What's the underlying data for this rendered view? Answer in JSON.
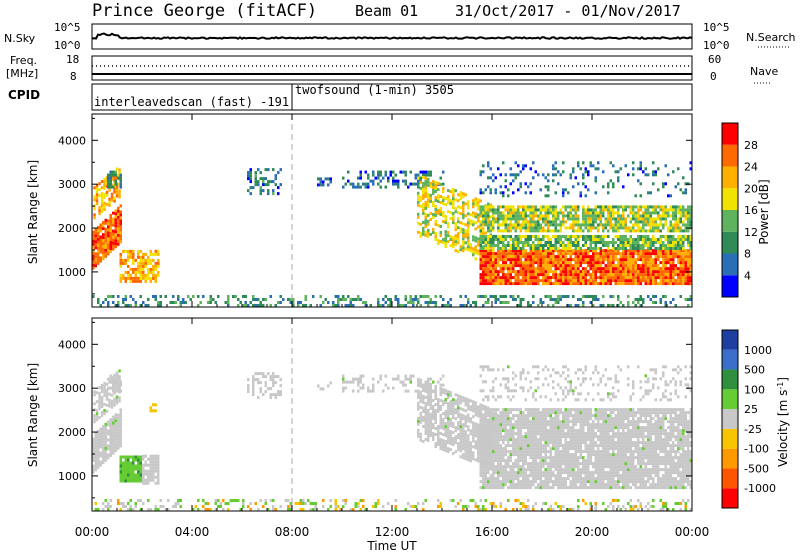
{
  "header": {
    "station": "Prince George (fitACF)",
    "beam": "Beam 01",
    "date_range": "31/Oct/2017 - 01/Nov/2017"
  },
  "noise_panel": {
    "left_label": "N.Sky",
    "left_ticks": [
      "10^5",
      "10^0"
    ],
    "right_label": "N.Search",
    "right_ticks": [
      "10^5",
      "10^0"
    ]
  },
  "freq_panel": {
    "left_label_line1": "Freq.",
    "left_label_line2": "[MHz]",
    "left_ticks": [
      "18",
      "8"
    ],
    "right_label": "Nave",
    "right_ticks": [
      "60",
      "0"
    ]
  },
  "cpid_panel": {
    "label": "CPID",
    "segments": [
      {
        "text": "interleavedscan (fast) -191",
        "start_hour": 0,
        "end_hour": 8
      },
      {
        "text": "twofsound (1-min) 3505",
        "start_hour": 8,
        "end_hour": 24
      }
    ]
  },
  "colors": {
    "power": [
      "#0000ff",
      "#2a6fb5",
      "#2e8b57",
      "#5fb35f",
      "#f2e200",
      "#ffb000",
      "#ff6a00",
      "#ff0000"
    ],
    "velocity_pos": [
      "#1f3fa0",
      "#3a6ec8",
      "#2f8f3f",
      "#66cc33"
    ],
    "velocity_ground": "#c8c8c8",
    "velocity_neg": [
      "#f7c500",
      "#ff9900",
      "#ff5500",
      "#ff0000"
    ]
  },
  "chart_data": [
    {
      "type": "heatmap",
      "title": "",
      "xlabel": "",
      "ylabel": "Slant Range [km]",
      "xlim": [
        0,
        24
      ],
      "ylim": [
        200,
        4600
      ],
      "x_ticks": [
        "00:00",
        "04:00",
        "08:00",
        "12:00",
        "16:00",
        "20:00",
        "00:00"
      ],
      "y_ticks": [
        1000,
        2000,
        3000,
        4000
      ],
      "colorbar": {
        "label": "Power [dB]",
        "ticks": [
          4,
          8,
          12,
          16,
          20,
          24,
          28
        ],
        "range": [
          0,
          32
        ]
      },
      "regions": [
        {
          "h0": 0.0,
          "h1": 1.1,
          "r0": 1050,
          "r1": 1900,
          "value": 26,
          "density": 0.95,
          "slope": 600
        },
        {
          "h0": 0.05,
          "h1": 1.1,
          "r0": 2200,
          "r1": 2900,
          "value": 22,
          "density": 0.7,
          "slope": 500
        },
        {
          "h0": 0.6,
          "h1": 1.1,
          "r0": 2900,
          "r1": 3300,
          "value": 8,
          "density": 0.6,
          "slope": 0
        },
        {
          "h0": 1.1,
          "h1": 2.7,
          "r0": 750,
          "r1": 1500,
          "value": 22,
          "density": 0.7,
          "slope": 0
        },
        {
          "h0": 6.2,
          "h1": 7.5,
          "r0": 2750,
          "r1": 3300,
          "value": 8,
          "density": 0.45,
          "slope": 0
        },
        {
          "h0": 9.0,
          "h1": 9.5,
          "r0": 2950,
          "r1": 3150,
          "value": 6,
          "density": 0.5,
          "slope": 0
        },
        {
          "h0": 10.0,
          "h1": 14.0,
          "r0": 2900,
          "r1": 3300,
          "value": 7,
          "density": 0.35,
          "slope": 0
        },
        {
          "h0": 13.0,
          "h1": 16.0,
          "r0": 1800,
          "r1": 3200,
          "value": 18,
          "density": 0.55,
          "slope": -700
        },
        {
          "h0": 15.5,
          "h1": 24.0,
          "r0": 700,
          "r1": 1500,
          "value": 26,
          "density": 0.95,
          "slope": 0
        },
        {
          "h0": 15.5,
          "h1": 24.0,
          "r0": 1500,
          "r1": 1800,
          "value": 14,
          "density": 0.85,
          "slope": 0
        },
        {
          "h0": 15.5,
          "h1": 24.0,
          "r0": 1900,
          "r1": 2450,
          "value": 16,
          "density": 0.8,
          "slope": 0
        },
        {
          "h0": 15.5,
          "h1": 24.0,
          "r0": 2700,
          "r1": 3500,
          "value": 7,
          "density": 0.2,
          "slope": 0
        },
        {
          "h0": 0.0,
          "h1": 24.0,
          "r0": 200,
          "r1": 420,
          "value": 10,
          "density": 0.35,
          "slope": 0
        }
      ]
    },
    {
      "type": "heatmap",
      "title": "",
      "xlabel": "Time UT",
      "ylabel": "Slant Range [km]",
      "xlim": [
        0,
        24
      ],
      "ylim": [
        200,
        4600
      ],
      "x_ticks": [
        "00:00",
        "04:00",
        "08:00",
        "12:00",
        "16:00",
        "20:00",
        "00:00"
      ],
      "y_ticks": [
        1000,
        2000,
        3000,
        4000
      ],
      "colorbar": {
        "label": "Velocity [m s^-1]",
        "ticks": [
          "1000",
          "500",
          "100",
          "25",
          "-25",
          "-100",
          "-500",
          "-1000"
        ]
      },
      "regions": [
        {
          "h0": 0.0,
          "h1": 1.1,
          "r0": 1050,
          "r1": 1900,
          "class": "ground",
          "density": 0.95,
          "slope": 600
        },
        {
          "h0": 0.05,
          "h1": 1.1,
          "r0": 2200,
          "r1": 2900,
          "class": "ground",
          "density": 0.7,
          "slope": 500
        },
        {
          "h0": 0.6,
          "h1": 1.1,
          "r0": 2900,
          "r1": 3300,
          "class": "ground",
          "density": 0.5,
          "slope": 0
        },
        {
          "h0": 1.1,
          "h1": 2.0,
          "r0": 850,
          "r1": 1450,
          "class": "pos",
          "density": 0.9,
          "slope": 0
        },
        {
          "h0": 2.0,
          "h1": 2.7,
          "r0": 800,
          "r1": 1450,
          "class": "ground",
          "density": 0.85,
          "slope": 0
        },
        {
          "h0": 2.3,
          "h1": 2.6,
          "r0": 2450,
          "r1": 2650,
          "class": "neg",
          "density": 0.7,
          "slope": 0
        },
        {
          "h0": 6.2,
          "h1": 7.5,
          "r0": 2750,
          "r1": 3300,
          "class": "ground",
          "density": 0.35,
          "slope": 0
        },
        {
          "h0": 9.0,
          "h1": 9.5,
          "r0": 2950,
          "r1": 3150,
          "class": "ground",
          "density": 0.5,
          "slope": 0
        },
        {
          "h0": 10.0,
          "h1": 14.0,
          "r0": 2900,
          "r1": 3300,
          "class": "ground",
          "density": 0.3,
          "slope": 0
        },
        {
          "h0": 13.0,
          "h1": 16.0,
          "r0": 1800,
          "r1": 3200,
          "class": "ground",
          "density": 0.75,
          "slope": -700
        },
        {
          "h0": 15.5,
          "h1": 24.0,
          "r0": 700,
          "r1": 2500,
          "class": "ground",
          "density": 0.9,
          "slope": 0
        },
        {
          "h0": 15.5,
          "h1": 24.0,
          "r0": 2700,
          "r1": 3500,
          "class": "ground",
          "density": 0.2,
          "slope": 0
        },
        {
          "h0": 0.0,
          "h1": 24.0,
          "r0": 200,
          "r1": 420,
          "class": "mixed",
          "density": 0.3,
          "slope": 0
        }
      ]
    }
  ]
}
